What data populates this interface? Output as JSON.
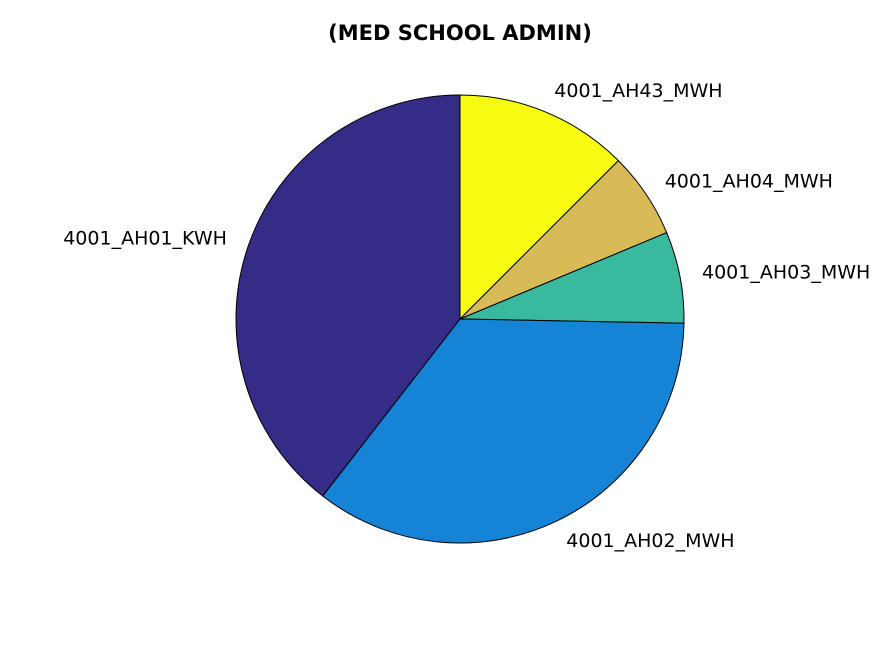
{
  "chart_data": {
    "type": "pie",
    "title": "(MED SCHOOL ADMIN)",
    "labels": [
      "4001_AH43_MWH",
      "4001_AH04_MWH",
      "4001_AH03_MWH",
      "4001_AH02_MWH",
      "4001_AH01_KWH"
    ],
    "values": [
      12.5,
      6.2,
      6.6,
      35.2,
      39.5
    ],
    "colors": [
      "#f7fb12",
      "#d8bb56",
      "#39ba9e",
      "#1584d6",
      "#352c87"
    ],
    "legend": "none"
  }
}
